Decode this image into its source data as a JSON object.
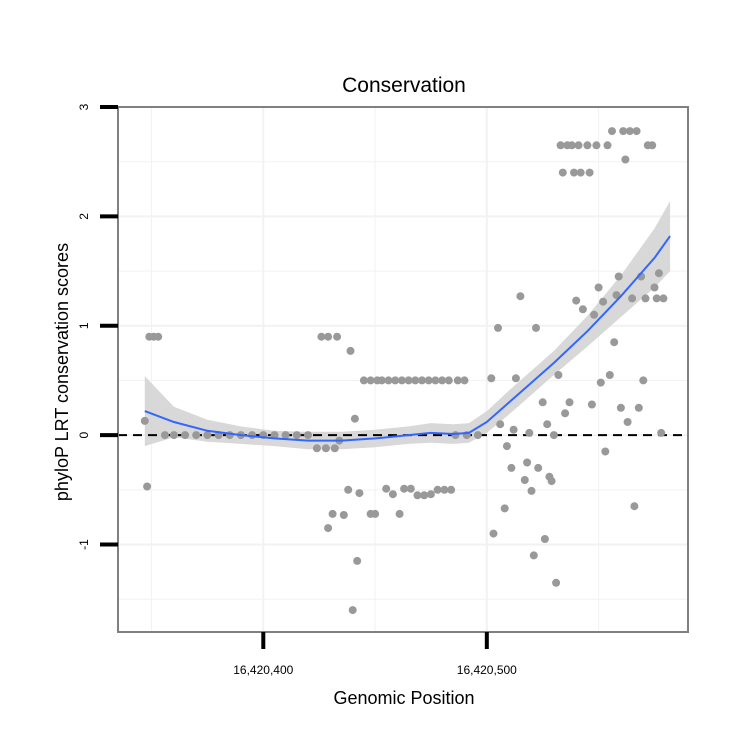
{
  "chart_data": {
    "type": "scatter",
    "title": "Conservation",
    "xlabel": "Genomic Position",
    "ylabel": "phyloP LRT conservation scores",
    "xlim": [
      16420335,
      16420590
    ],
    "ylim": [
      -1.8,
      3.0
    ],
    "x_ticks": [
      {
        "value": 16420400,
        "label": "16,420,400"
      },
      {
        "value": 16420500,
        "label": "16,420,500"
      }
    ],
    "y_ticks": [
      {
        "value": -1,
        "label": "-1"
      },
      {
        "value": 0,
        "label": "0"
      },
      {
        "value": 1,
        "label": "1"
      },
      {
        "value": 2,
        "label": "2"
      },
      {
        "value": 3,
        "label": "3"
      }
    ],
    "grid": true,
    "reference_line": {
      "y": 0,
      "style": "dashed"
    },
    "colors": {
      "points": "#999999",
      "smooth": "#3366ff",
      "band": "#d4d4d4",
      "panel_border": "#808080",
      "grid": "#f2f2f2"
    },
    "smooth": {
      "x": [
        16420347,
        16420360,
        16420375,
        16420390,
        16420405,
        16420420,
        16420435,
        16420450,
        16420465,
        16420475,
        16420485,
        16420492,
        16420500,
        16420510,
        16420520,
        16420530,
        16420545,
        16420560,
        16420575,
        16420582
      ],
      "y": [
        0.22,
        0.12,
        0.04,
        0.0,
        -0.03,
        -0.05,
        -0.05,
        -0.03,
        0.0,
        0.02,
        0.01,
        0.02,
        0.12,
        0.3,
        0.48,
        0.66,
        0.95,
        1.27,
        1.62,
        1.82
      ],
      "lower": [
        -0.1,
        -0.02,
        -0.06,
        -0.08,
        -0.1,
        -0.13,
        -0.13,
        -0.11,
        -0.08,
        -0.07,
        -0.08,
        -0.07,
        0.02,
        0.19,
        0.37,
        0.55,
        0.81,
        1.08,
        1.35,
        1.5
      ],
      "upper": [
        0.54,
        0.26,
        0.14,
        0.08,
        0.04,
        0.03,
        0.03,
        0.05,
        0.08,
        0.11,
        0.1,
        0.11,
        0.22,
        0.41,
        0.59,
        0.77,
        1.09,
        1.46,
        1.89,
        2.14
      ]
    },
    "points": [
      {
        "x": 16420347,
        "y": 0.13
      },
      {
        "x": 16420348,
        "y": -0.47
      },
      {
        "x": 16420349,
        "y": 0.9
      },
      {
        "x": 16420351,
        "y": 0.9
      },
      {
        "x": 16420353,
        "y": 0.9
      },
      {
        "x": 16420356,
        "y": 0.0
      },
      {
        "x": 16420360,
        "y": 0.0
      },
      {
        "x": 16420365,
        "y": 0.0
      },
      {
        "x": 16420370,
        "y": 0.0
      },
      {
        "x": 16420375,
        "y": 0.0
      },
      {
        "x": 16420380,
        "y": 0.0
      },
      {
        "x": 16420385,
        "y": 0.0
      },
      {
        "x": 16420390,
        "y": 0.0
      },
      {
        "x": 16420395,
        "y": 0.0
      },
      {
        "x": 16420400,
        "y": 0.0
      },
      {
        "x": 16420405,
        "y": 0.0
      },
      {
        "x": 16420410,
        "y": 0.0
      },
      {
        "x": 16420415,
        "y": 0.0
      },
      {
        "x": 16420420,
        "y": 0.0
      },
      {
        "x": 16420424,
        "y": -0.12
      },
      {
        "x": 16420428,
        "y": -0.12
      },
      {
        "x": 16420432,
        "y": -0.12
      },
      {
        "x": 16420426,
        "y": 0.9
      },
      {
        "x": 16420429,
        "y": 0.9
      },
      {
        "x": 16420433,
        "y": 0.9
      },
      {
        "x": 16420429,
        "y": -0.85
      },
      {
        "x": 16420431,
        "y": -0.72
      },
      {
        "x": 16420434,
        "y": -0.05
      },
      {
        "x": 16420436,
        "y": -0.73
      },
      {
        "x": 16420438,
        "y": -0.5
      },
      {
        "x": 16420439,
        "y": 0.77
      },
      {
        "x": 16420440,
        "y": -1.6
      },
      {
        "x": 16420442,
        "y": -1.15
      },
      {
        "x": 16420441,
        "y": 0.15
      },
      {
        "x": 16420443,
        "y": -0.53
      },
      {
        "x": 16420445,
        "y": 0.5
      },
      {
        "x": 16420448,
        "y": -0.72
      },
      {
        "x": 16420450,
        "y": -0.72
      },
      {
        "x": 16420448,
        "y": 0.5
      },
      {
        "x": 16420451,
        "y": 0.5
      },
      {
        "x": 16420453,
        "y": 0.5
      },
      {
        "x": 16420455,
        "y": -0.49
      },
      {
        "x": 16420456,
        "y": 0.5
      },
      {
        "x": 16420458,
        "y": -0.54
      },
      {
        "x": 16420459,
        "y": 0.5
      },
      {
        "x": 16420461,
        "y": -0.72
      },
      {
        "x": 16420462,
        "y": 0.5
      },
      {
        "x": 16420463,
        "y": -0.49
      },
      {
        "x": 16420465,
        "y": 0.5
      },
      {
        "x": 16420466,
        "y": -0.49
      },
      {
        "x": 16420468,
        "y": 0.5
      },
      {
        "x": 16420469,
        "y": -0.55
      },
      {
        "x": 16420471,
        "y": 0.5
      },
      {
        "x": 16420472,
        "y": -0.55
      },
      {
        "x": 16420474,
        "y": 0.5
      },
      {
        "x": 16420475,
        "y": -0.54
      },
      {
        "x": 16420477,
        "y": 0.5
      },
      {
        "x": 16420478,
        "y": -0.5
      },
      {
        "x": 16420480,
        "y": 0.5
      },
      {
        "x": 16420481,
        "y": -0.5
      },
      {
        "x": 16420483,
        "y": 0.5
      },
      {
        "x": 16420484,
        "y": -0.5
      },
      {
        "x": 16420487,
        "y": 0.5
      },
      {
        "x": 16420490,
        "y": 0.5
      },
      {
        "x": 16420486,
        "y": 0.0
      },
      {
        "x": 16420491,
        "y": 0.0
      },
      {
        "x": 16420496,
        "y": 0.0
      },
      {
        "x": 16420502,
        "y": 0.52
      },
      {
        "x": 16420503,
        "y": -0.9
      },
      {
        "x": 16420505,
        "y": 0.98
      },
      {
        "x": 16420506,
        "y": 0.1
      },
      {
        "x": 16420508,
        "y": -0.67
      },
      {
        "x": 16420509,
        "y": -0.1
      },
      {
        "x": 16420511,
        "y": -0.3
      },
      {
        "x": 16420512,
        "y": 0.05
      },
      {
        "x": 16420513,
        "y": 0.52
      },
      {
        "x": 16420515,
        "y": 1.27
      },
      {
        "x": 16420517,
        "y": -0.41
      },
      {
        "x": 16420518,
        "y": -0.25
      },
      {
        "x": 16420519,
        "y": 0.02
      },
      {
        "x": 16420520,
        "y": -0.51
      },
      {
        "x": 16420521,
        "y": -1.1
      },
      {
        "x": 16420522,
        "y": 0.98
      },
      {
        "x": 16420523,
        "y": -0.3
      },
      {
        "x": 16420525,
        "y": 0.3
      },
      {
        "x": 16420526,
        "y": -0.95
      },
      {
        "x": 16420527,
        "y": 0.1
      },
      {
        "x": 16420528,
        "y": -0.38
      },
      {
        "x": 16420529,
        "y": -0.42
      },
      {
        "x": 16420530,
        "y": 0.0
      },
      {
        "x": 16420531,
        "y": -1.35
      },
      {
        "x": 16420532,
        "y": 0.55
      },
      {
        "x": 16420533,
        "y": 2.65
      },
      {
        "x": 16420534,
        "y": 2.4
      },
      {
        "x": 16420535,
        "y": 0.2
      },
      {
        "x": 16420536,
        "y": 2.65
      },
      {
        "x": 16420537,
        "y": 0.3
      },
      {
        "x": 16420538,
        "y": 2.65
      },
      {
        "x": 16420539,
        "y": 2.4
      },
      {
        "x": 16420540,
        "y": 1.23
      },
      {
        "x": 16420541,
        "y": 2.65
      },
      {
        "x": 16420542,
        "y": 2.4
      },
      {
        "x": 16420543,
        "y": 1.15
      },
      {
        "x": 16420545,
        "y": 2.65
      },
      {
        "x": 16420546,
        "y": 2.4
      },
      {
        "x": 16420547,
        "y": 0.28
      },
      {
        "x": 16420548,
        "y": 1.1
      },
      {
        "x": 16420549,
        "y": 2.65
      },
      {
        "x": 16420550,
        "y": 1.35
      },
      {
        "x": 16420551,
        "y": 0.48
      },
      {
        "x": 16420552,
        "y": 1.22
      },
      {
        "x": 16420553,
        "y": -0.15
      },
      {
        "x": 16420554,
        "y": 2.65
      },
      {
        "x": 16420555,
        "y": 0.55
      },
      {
        "x": 16420556,
        "y": 2.78
      },
      {
        "x": 16420557,
        "y": 0.85
      },
      {
        "x": 16420558,
        "y": 1.28
      },
      {
        "x": 16420559,
        "y": 1.45
      },
      {
        "x": 16420560,
        "y": 0.25
      },
      {
        "x": 16420561,
        "y": 2.78
      },
      {
        "x": 16420562,
        "y": 2.52
      },
      {
        "x": 16420563,
        "y": 0.12
      },
      {
        "x": 16420564,
        "y": 2.78
      },
      {
        "x": 16420565,
        "y": 1.25
      },
      {
        "x": 16420566,
        "y": -0.65
      },
      {
        "x": 16420567,
        "y": 2.78
      },
      {
        "x": 16420568,
        "y": 0.25
      },
      {
        "x": 16420569,
        "y": 1.45
      },
      {
        "x": 16420570,
        "y": 0.5
      },
      {
        "x": 16420571,
        "y": 1.25
      },
      {
        "x": 16420572,
        "y": 2.65
      },
      {
        "x": 16420574,
        "y": 2.65
      },
      {
        "x": 16420575,
        "y": 1.35
      },
      {
        "x": 16420576,
        "y": 1.25
      },
      {
        "x": 16420577,
        "y": 1.48
      },
      {
        "x": 16420578,
        "y": 0.02
      },
      {
        "x": 16420579,
        "y": 1.25
      }
    ]
  }
}
